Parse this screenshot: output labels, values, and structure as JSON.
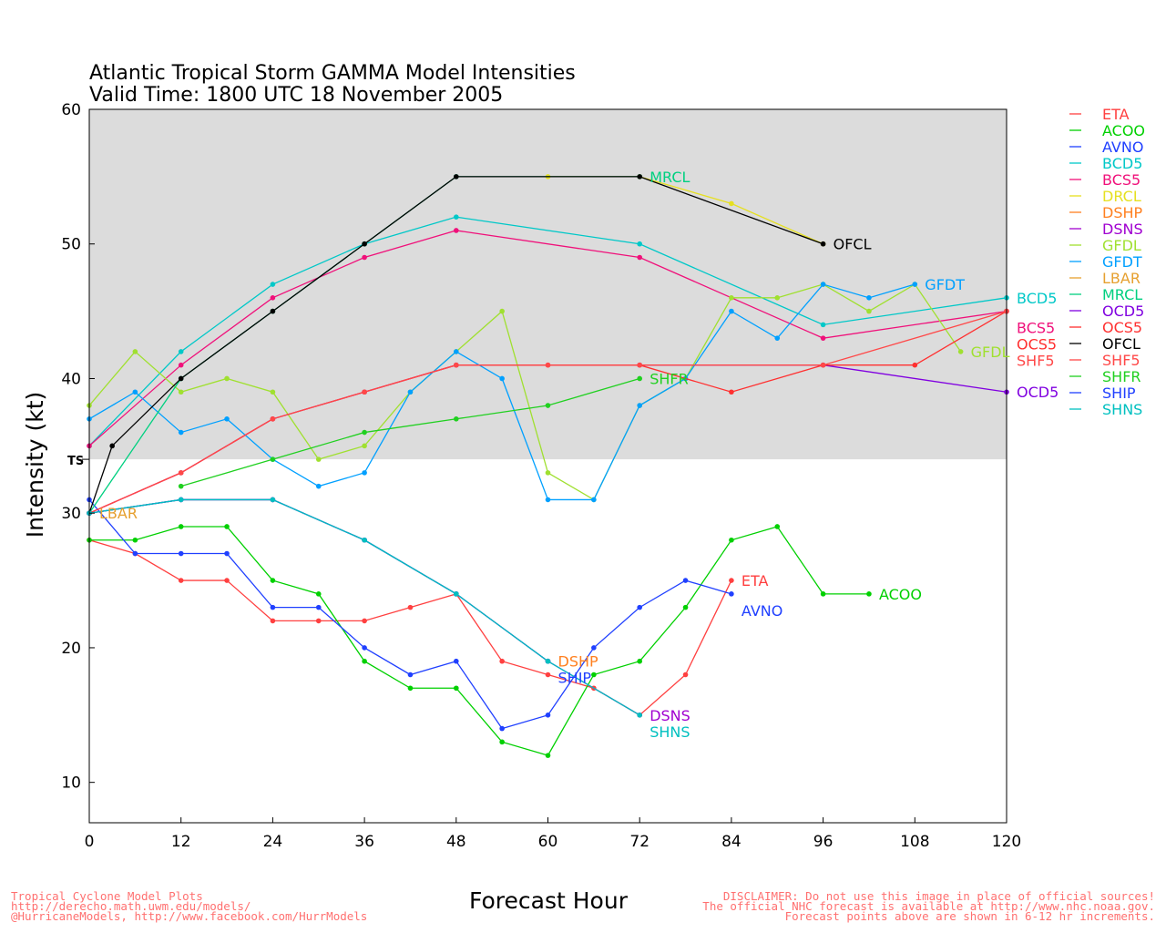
{
  "chart_data": {
    "type": "line",
    "title": "Atlantic Tropical Storm GAMMA Model Intensities",
    "subtitle": "Valid Time: 1800 UTC 18 November 2005",
    "xlabel": "Forecast Hour",
    "ylabel": "Intensity (kt)",
    "xlim": [
      0,
      120
    ],
    "ylim": [
      7,
      60
    ],
    "xticks": [
      0,
      12,
      24,
      36,
      48,
      60,
      72,
      84,
      96,
      108,
      120
    ],
    "yticks": [
      10,
      20,
      30,
      40,
      50,
      60
    ],
    "ts_threshold": 34,
    "ts_label": "TS",
    "shade_color": "#dcdcdc",
    "legend_position": "right",
    "series": [
      {
        "name": "ETA",
        "color": "#ff4040",
        "x": [
          0,
          6,
          12,
          18,
          24,
          30,
          36,
          42,
          48,
          54,
          60,
          66,
          72,
          78,
          84
        ],
        "y": [
          28,
          27,
          25,
          25,
          22,
          22,
          22,
          23,
          24,
          19,
          18,
          17,
          15,
          18,
          25
        ],
        "label": "ETA"
      },
      {
        "name": "ACOO",
        "color": "#00d000",
        "x": [
          0,
          6,
          12,
          18,
          24,
          30,
          36,
          42,
          48,
          54,
          60,
          66,
          72,
          78,
          84,
          90,
          96,
          102
        ],
        "y": [
          28,
          28,
          29,
          29,
          25,
          24,
          19,
          17,
          17,
          13,
          12,
          18,
          19,
          23,
          28,
          29,
          24,
          24
        ],
        "label": "ACOO"
      },
      {
        "name": "AVNO",
        "color": "#2040ff",
        "x": [
          0,
          6,
          12,
          18,
          24,
          30,
          36,
          42,
          48,
          54,
          60,
          66,
          72,
          78,
          84
        ],
        "y": [
          31,
          27,
          27,
          27,
          23,
          23,
          20,
          18,
          19,
          14,
          15,
          20,
          23,
          25,
          24
        ],
        "label": "AVNO"
      },
      {
        "name": "BCD5",
        "color": "#00c8c8",
        "x": [
          0,
          12,
          24,
          36,
          48,
          72,
          96,
          120
        ],
        "y": [
          35,
          42,
          47,
          50,
          52,
          50,
          44,
          46
        ],
        "label": "BCD5"
      },
      {
        "name": "BCS5",
        "color": "#f0107a",
        "x": [
          0,
          12,
          24,
          36,
          48,
          72,
          96,
          120
        ],
        "y": [
          35,
          41,
          46,
          49,
          51,
          49,
          43,
          45
        ],
        "label": "BCS5"
      },
      {
        "name": "DRCL",
        "color": "#e6e020",
        "x": [
          60,
          72,
          84,
          96
        ],
        "y": [
          55,
          55,
          53,
          50
        ],
        "label": ""
      },
      {
        "name": "DSHP",
        "color": "#ff8020",
        "x": [
          0,
          12,
          24,
          36,
          48,
          60
        ],
        "y": [
          30,
          31,
          31,
          28,
          24,
          19
        ],
        "label": "DSHP"
      },
      {
        "name": "DSNS",
        "color": "#a000d0",
        "x": [
          0,
          12,
          24,
          36,
          48,
          60,
          72
        ],
        "y": [
          30,
          31,
          31,
          28,
          24,
          19,
          15
        ],
        "label": "DSNS"
      },
      {
        "name": "GFDL",
        "color": "#a0e030",
        "x": [
          0,
          6,
          12,
          18,
          24,
          30,
          36,
          42,
          48,
          54,
          60,
          66,
          72,
          78,
          84,
          90,
          96,
          102,
          108,
          114
        ],
        "y": [
          38,
          42,
          39,
          40,
          39,
          34,
          35,
          39,
          42,
          45,
          33,
          31,
          38,
          40,
          46,
          46,
          47,
          45,
          47,
          42
        ],
        "label": "GFDL"
      },
      {
        "name": "GFDT",
        "color": "#00a0ff",
        "x": [
          0,
          6,
          12,
          18,
          24,
          30,
          36,
          42,
          48,
          54,
          60,
          66,
          72,
          78,
          84,
          90,
          96,
          102,
          108
        ],
        "y": [
          37,
          39,
          36,
          37,
          34,
          32,
          33,
          39,
          42,
          40,
          31,
          31,
          38,
          40,
          45,
          43,
          47,
          46,
          47
        ],
        "label": "GFDT"
      },
      {
        "name": "LBAR",
        "color": "#e6a030",
        "x": [
          0
        ],
        "y": [
          30
        ],
        "label": "LBAR"
      },
      {
        "name": "MRCL",
        "color": "#00d080",
        "x": [
          0,
          12,
          24,
          36,
          48,
          72
        ],
        "y": [
          30,
          40,
          45,
          50,
          55,
          55
        ],
        "label": "MRCL"
      },
      {
        "name": "OCD5",
        "color": "#8000e0",
        "x": [
          0,
          12,
          24,
          36,
          48,
          72,
          96,
          120
        ],
        "y": [
          30,
          33,
          37,
          39,
          41,
          41,
          41,
          39
        ],
        "label": "OCD5"
      },
      {
        "name": "OCS5",
        "color": "#ff3030",
        "x": [
          0,
          12,
          24,
          36,
          48,
          60,
          72,
          84,
          96,
          108,
          120
        ],
        "y": [
          30,
          33,
          37,
          39,
          41,
          41,
          41,
          39,
          41,
          41,
          45
        ],
        "label": "OCS5"
      },
      {
        "name": "OFCL",
        "color": "#000000",
        "x": [
          0,
          3,
          12,
          24,
          36,
          48,
          72,
          96
        ],
        "y": [
          30,
          35,
          40,
          45,
          50,
          55,
          55,
          50
        ],
        "label": "OFCL"
      },
      {
        "name": "SHF5",
        "color": "#ff4848",
        "x": [
          0,
          12,
          24,
          36,
          48,
          60,
          72,
          96,
          120
        ],
        "y": [
          30,
          33,
          37,
          39,
          41,
          41,
          41,
          41,
          45
        ],
        "label": "SHF5"
      },
      {
        "name": "SHFR",
        "color": "#20d020",
        "x": [
          12,
          24,
          36,
          48,
          60,
          72
        ],
        "y": [
          32,
          34,
          36,
          37,
          38,
          40
        ],
        "label": "SHFR"
      },
      {
        "name": "SHIP",
        "color": "#2040ff",
        "x": [
          0,
          12,
          24,
          36,
          48,
          60
        ],
        "y": [
          30,
          31,
          31,
          28,
          24,
          19
        ],
        "label": "SHIP"
      },
      {
        "name": "SHNS",
        "color": "#00c0c0",
        "x": [
          0,
          12,
          24,
          36,
          48,
          60,
          72
        ],
        "y": [
          30,
          31,
          31,
          28,
          24,
          19,
          15
        ],
        "label": "SHNS"
      }
    ]
  },
  "footer": {
    "left": [
      "Tropical Cyclone Model Plots",
      "http://derecho.math.uwm.edu/models/",
      "@HurricaneModels, http://www.facebook.com/HurrModels"
    ],
    "right": [
      "DISCLAIMER: Do not use this image in place of official sources!",
      "The official NHC forecast is available at http://www.nhc.noaa.gov.",
      "Forecast points above are shown in 6-12 hr increments."
    ]
  }
}
